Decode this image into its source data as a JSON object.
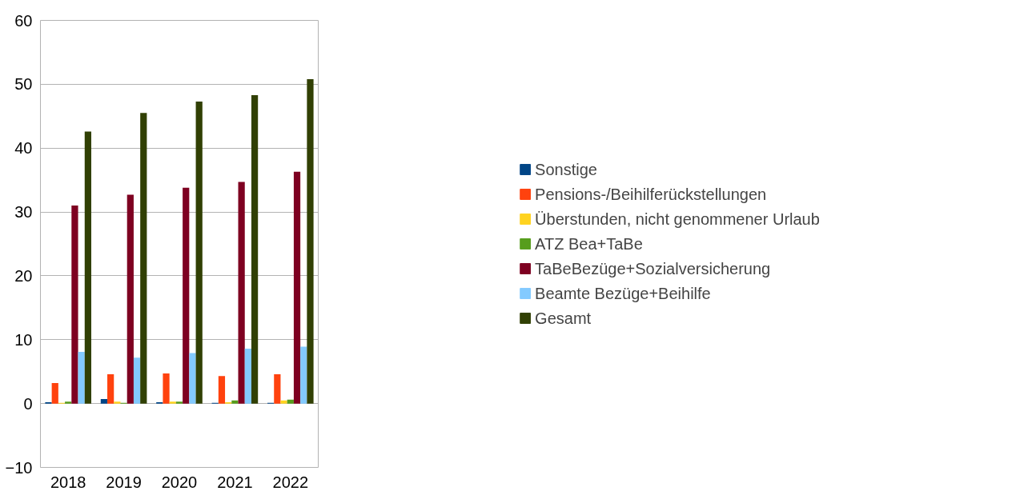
{
  "chart_data": {
    "type": "bar",
    "categories": [
      "2018",
      "2019",
      "2020",
      "2021",
      "2022"
    ],
    "series": [
      {
        "name": "Sonstige",
        "color": "#004586",
        "values": [
          0.2,
          0.7,
          0.2,
          0.1,
          0.1
        ]
      },
      {
        "name": "Pensions-/Beihilferückstellungen",
        "color": "#ff420e",
        "values": [
          3.2,
          4.6,
          4.7,
          4.3,
          4.6
        ]
      },
      {
        "name": "Überstunden, nicht genommener Urlaub",
        "color": "#ffd320",
        "values": [
          0.1,
          0.3,
          0.3,
          0.2,
          0.5
        ]
      },
      {
        "name": "ATZ Bea+TaBe",
        "color": "#579d1c",
        "values": [
          0.3,
          0.1,
          0.3,
          0.5,
          0.6
        ]
      },
      {
        "name": "TaBeBezüge+Sozialversicherung",
        "color": "#7e0021",
        "values": [
          31.0,
          32.7,
          33.8,
          34.7,
          36.3
        ]
      },
      {
        "name": "Beamte Bezüge+Beihilfe",
        "color": "#83caff",
        "values": [
          8.1,
          7.2,
          7.9,
          8.6,
          8.9
        ]
      },
      {
        "name": "Gesamt",
        "color": "#314004",
        "values": [
          42.6,
          45.5,
          47.3,
          48.3,
          50.8
        ]
      }
    ],
    "ylim": [
      -10,
      60
    ],
    "yticks": [
      -10,
      0,
      10,
      20,
      30,
      40,
      50,
      60
    ],
    "grid": "y",
    "legend": "right"
  }
}
